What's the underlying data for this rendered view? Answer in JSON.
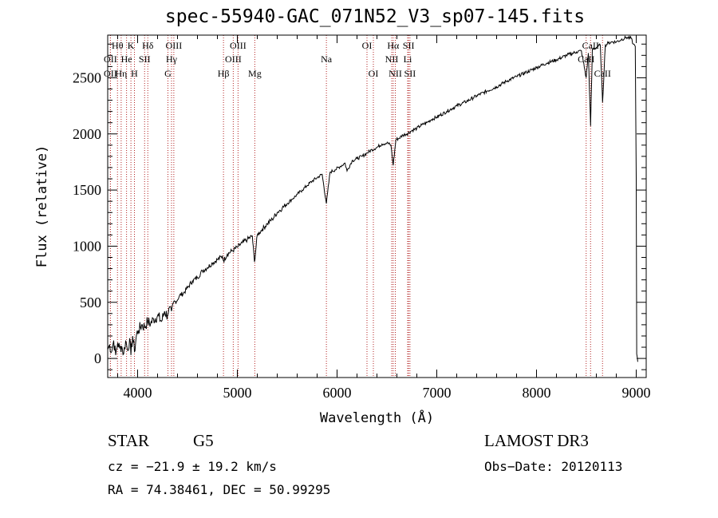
{
  "chart_data": {
    "type": "line",
    "title": "spec-55940-GAC_071N52_V3_sp07-145.fits",
    "xlabel": "Wavelength (Å)",
    "ylabel": "Flux (relative)",
    "xlim": [
      3700,
      9100
    ],
    "ylim": [
      -170,
      2880
    ],
    "x_ticks": [
      4000,
      5000,
      6000,
      7000,
      8000,
      9000
    ],
    "x_tick_labels": [
      "4000",
      "5000",
      "6000",
      "7000",
      "8000",
      "9000"
    ],
    "y_ticks": [
      0,
      500,
      1000,
      1500,
      2000,
      2500
    ],
    "y_tick_labels": [
      "0",
      "500",
      "1000",
      "1500",
      "2000",
      "2500"
    ],
    "grid": false,
    "series": [
      {
        "name": "spectrum",
        "x": [
          3700,
          3720,
          3740,
          3760,
          3780,
          3800,
          3820,
          3840,
          3860,
          3880,
          3900,
          3920,
          3933,
          3950,
          3968,
          3990,
          4010,
          4040,
          4070,
          4100,
          4130,
          4160,
          4200,
          4240,
          4270,
          4300,
          4320,
          4340,
          4360,
          4390,
          4420,
          4460,
          4500,
          4550,
          4600,
          4650,
          4700,
          4750,
          4800,
          4850,
          4861,
          4900,
          4950,
          5000,
          5050,
          5100,
          5150,
          5172,
          5200,
          5250,
          5300,
          5350,
          5400,
          5450,
          5500,
          5550,
          5600,
          5650,
          5700,
          5750,
          5800,
          5850,
          5893,
          5930,
          5980,
          6030,
          6080,
          6100,
          6150,
          6200,
          6250,
          6300,
          6350,
          6400,
          6450,
          6500,
          6540,
          6563,
          6590,
          6620,
          6660,
          6700,
          6750,
          6800,
          6850,
          6900,
          6950,
          7000,
          7100,
          7200,
          7300,
          7400,
          7500,
          7600,
          7700,
          7800,
          7900,
          8000,
          8100,
          8200,
          8300,
          8400,
          8450,
          8498,
          8520,
          8542,
          8560,
          8600,
          8640,
          8662,
          8690,
          8720,
          8760,
          8800,
          8850,
          8900,
          8950,
          8970,
          8990,
          9000,
          9005,
          9010,
          9015
        ],
        "y": [
          80,
          120,
          60,
          160,
          30,
          140,
          90,
          110,
          40,
          160,
          70,
          180,
          30,
          200,
          60,
          220,
          250,
          300,
          280,
          330,
          310,
          350,
          380,
          330,
          420,
          380,
          460,
          420,
          500,
          510,
          560,
          580,
          630,
          690,
          720,
          780,
          810,
          850,
          880,
          910,
          870,
          930,
          960,
          990,
          1030,
          1060,
          1090,
          860,
          1100,
          1150,
          1200,
          1240,
          1300,
          1340,
          1380,
          1420,
          1460,
          1500,
          1540,
          1580,
          1610,
          1640,
          1380,
          1660,
          1680,
          1710,
          1740,
          1670,
          1760,
          1780,
          1800,
          1830,
          1860,
          1880,
          1910,
          1920,
          1900,
          1720,
          1950,
          1960,
          1990,
          2000,
          2030,
          2050,
          2080,
          2100,
          2130,
          2150,
          2200,
          2250,
          2290,
          2340,
          2380,
          2420,
          2470,
          2510,
          2550,
          2590,
          2630,
          2660,
          2700,
          2730,
          2740,
          2500,
          2720,
          2070,
          2750,
          2770,
          2790,
          2280,
          2790,
          2810,
          2820,
          2820,
          2840,
          2860,
          2850,
          2800,
          2780,
          1600,
          40,
          10,
          -30
        ],
        "color": "#000000"
      }
    ],
    "annotations": [
      {
        "label": "Hθ",
        "wavelength": 3798,
        "row": 1
      },
      {
        "label": "OII",
        "wavelength": 3727,
        "row": 2
      },
      {
        "label": "OII",
        "wavelength": 3727,
        "row": 3
      },
      {
        "label": "He",
        "wavelength": 3889,
        "row": 2
      },
      {
        "label": "Hη",
        "wavelength": 3835,
        "row": 3
      },
      {
        "label": "K",
        "wavelength": 3933,
        "row": 1
      },
      {
        "label": "SII",
        "wavelength": 4070,
        "row": 2
      },
      {
        "label": "H",
        "wavelength": 3968,
        "row": 3
      },
      {
        "label": "Hδ",
        "wavelength": 4102,
        "row": 1
      },
      {
        "label": "OIII",
        "wavelength": 4363,
        "row": 1
      },
      {
        "label": "Hγ",
        "wavelength": 4340,
        "row": 2
      },
      {
        "label": "G",
        "wavelength": 4304,
        "row": 3
      },
      {
        "label": "OIII",
        "wavelength": 5007,
        "row": 1
      },
      {
        "label": "OIII",
        "wavelength": 4959,
        "row": 2
      },
      {
        "label": "Hβ",
        "wavelength": 4861,
        "row": 3
      },
      {
        "label": "Mg",
        "wavelength": 5175,
        "row": 3
      },
      {
        "label": "Na",
        "wavelength": 5893,
        "row": 2
      },
      {
        "label": "OI",
        "wavelength": 6300,
        "row": 1
      },
      {
        "label": "OI",
        "wavelength": 6364,
        "row": 3
      },
      {
        "label": "Hα",
        "wavelength": 6563,
        "row": 1
      },
      {
        "label": "NII",
        "wavelength": 6548,
        "row": 2
      },
      {
        "label": "NII",
        "wavelength": 6584,
        "row": 3
      },
      {
        "label": "SII",
        "wavelength": 6717,
        "row": 1
      },
      {
        "label": "Li",
        "wavelength": 6708,
        "row": 2
      },
      {
        "label": "SII",
        "wavelength": 6731,
        "row": 3
      },
      {
        "label": "CaII",
        "wavelength": 8542,
        "row": 1
      },
      {
        "label": "CaII",
        "wavelength": 8498,
        "row": 2
      },
      {
        "label": "CaII",
        "wavelength": 8662,
        "row": 3
      }
    ],
    "marker_color": "#b22222"
  },
  "info": {
    "object_class": "STAR",
    "subclass": "G5",
    "survey": "LAMOST DR3",
    "cz": "cz = −21.9 ± 19.2 km/s",
    "obs_date": "Obs−Date: 20120113",
    "coords": "RA =  74.38461, DEC =  50.99295"
  }
}
